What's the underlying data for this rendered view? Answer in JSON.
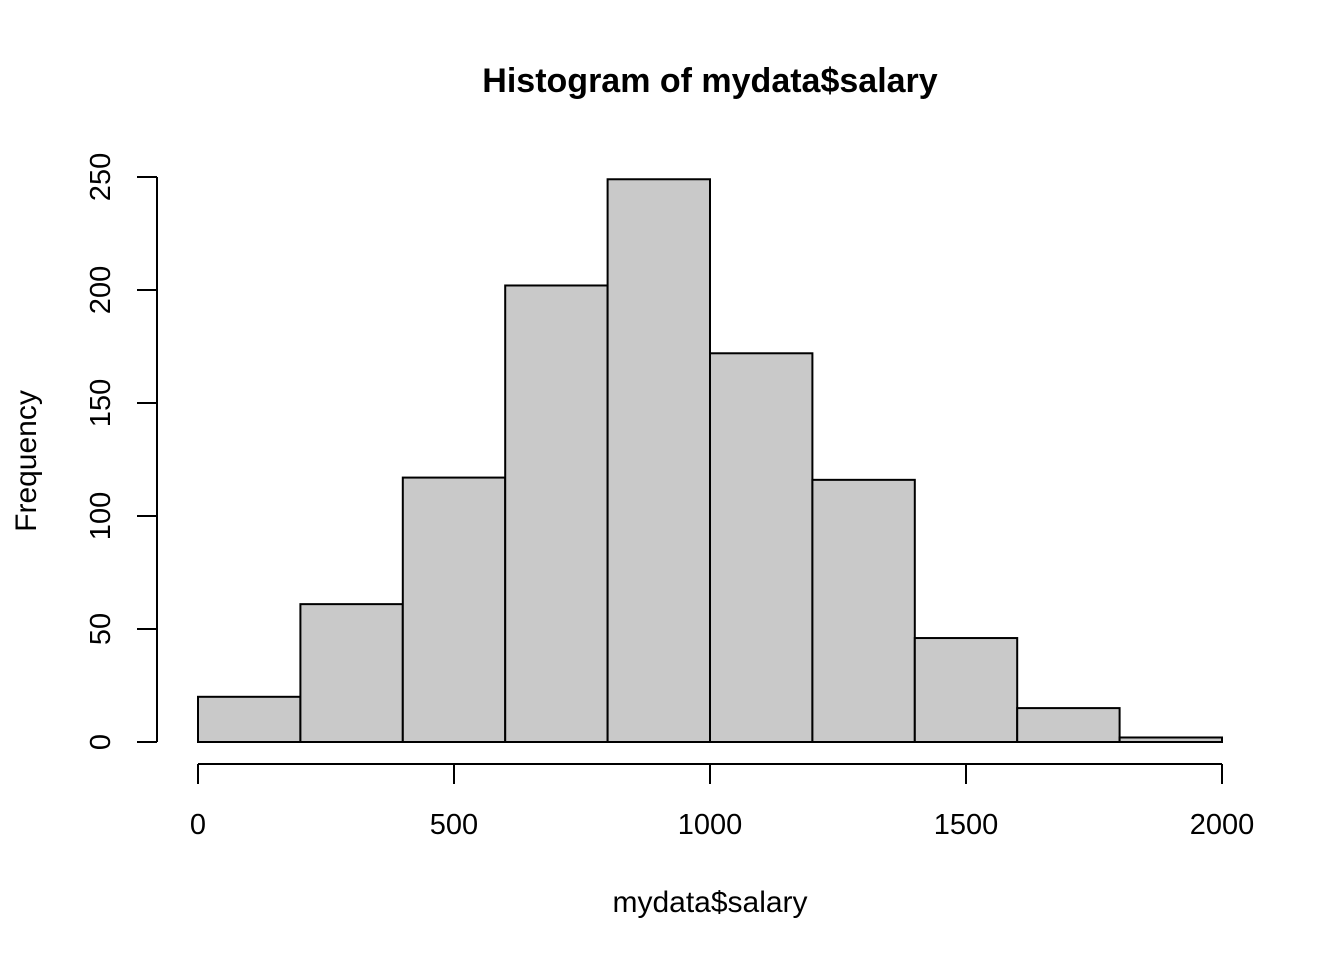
{
  "chart_data": {
    "type": "bar",
    "title": "Histogram of mydata$salary",
    "xlabel": "mydata$salary",
    "ylabel": "Frequency",
    "bins": [
      {
        "start": 0,
        "end": 200,
        "count": 20
      },
      {
        "start": 200,
        "end": 400,
        "count": 61
      },
      {
        "start": 400,
        "end": 600,
        "count": 117
      },
      {
        "start": 600,
        "end": 800,
        "count": 202
      },
      {
        "start": 800,
        "end": 1000,
        "count": 249
      },
      {
        "start": 1000,
        "end": 1200,
        "count": 172
      },
      {
        "start": 1200,
        "end": 1400,
        "count": 116
      },
      {
        "start": 1400,
        "end": 1600,
        "count": 46
      },
      {
        "start": 1600,
        "end": 1800,
        "count": 15
      },
      {
        "start": 1800,
        "end": 2000,
        "count": 2
      }
    ],
    "xlim": [
      0,
      2000
    ],
    "ylim": [
      0,
      250
    ],
    "x_ticks": [
      "0",
      "500",
      "1000",
      "1500",
      "2000"
    ],
    "y_ticks": [
      "0",
      "50",
      "100",
      "150",
      "200",
      "250"
    ],
    "grid": false,
    "colors": {
      "bar_fill": "#c9c9c9",
      "bar_stroke": "#000000"
    }
  }
}
